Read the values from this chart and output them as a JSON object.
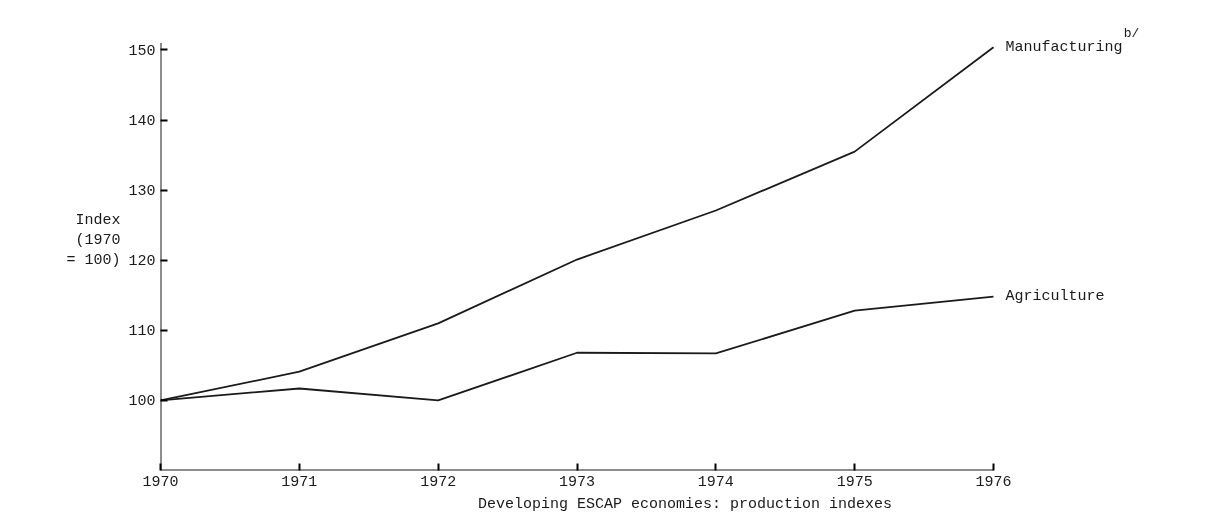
{
  "chart_data": {
    "type": "line",
    "title": "Developing ESCAP economies:  production indexes",
    "ylabel": "Index\n(1970\n= 100)",
    "x": [
      1970,
      1971,
      1972,
      1973,
      1974,
      1975,
      1976
    ],
    "series": [
      {
        "name": "Manufacturing$^{b/}$",
        "color": "#1a1a1a",
        "values": [
          100,
          104.1,
          111,
          120.1,
          127.1,
          135.5,
          150.4
        ]
      },
      {
        "name": "Agriculture",
        "color": "#1a1a1a",
        "values": [
          100,
          101.7,
          100,
          106.8,
          106.7,
          112.8,
          114.8
        ]
      }
    ],
    "xlim": [
      1970,
      1976
    ],
    "xticks": [
      1970,
      1971,
      1972,
      1973,
      1974,
      1975,
      1976
    ],
    "ylim": [
      90,
      151
    ],
    "yticks": [
      100,
      110,
      120,
      130,
      140,
      150
    ],
    "grid": false,
    "marker": "none",
    "line_style": "solid"
  }
}
